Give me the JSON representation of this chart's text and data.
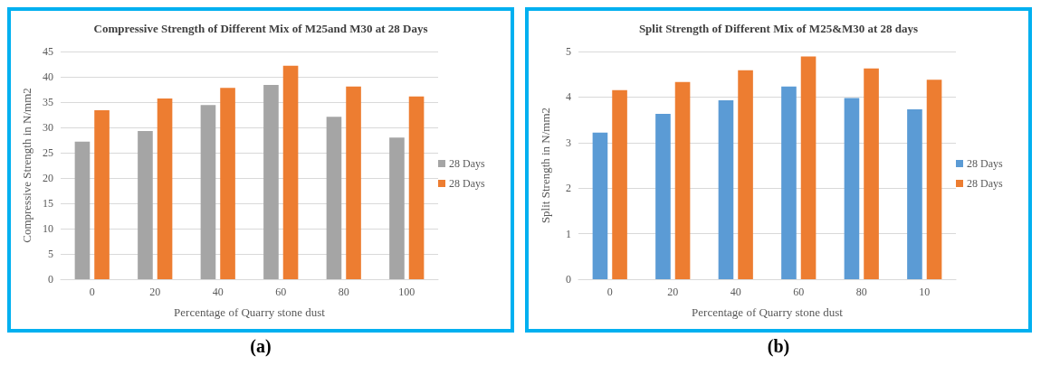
{
  "chart_data": [
    {
      "type": "bar",
      "title": "Compressive Strength of Different Mix of M25and M30 at 28 Days",
      "xlabel": "Percentage of Quarry stone dust",
      "ylabel": "Compressive Strength in N/mm2",
      "categories": [
        "0",
        "20",
        "40",
        "60",
        "80",
        "100"
      ],
      "series": [
        {
          "name": "28 Days",
          "color": "#a5a5a5",
          "values": [
            27.2,
            29.3,
            34.4,
            38.4,
            32.1,
            28.0
          ]
        },
        {
          "name": "28 Days",
          "color": "#ed7d31",
          "values": [
            33.4,
            35.7,
            37.8,
            42.2,
            38.1,
            36.1
          ]
        }
      ],
      "ylim": [
        0,
        45
      ],
      "yticks": [
        0,
        5,
        10,
        15,
        20,
        25,
        30,
        35,
        40,
        45
      ],
      "grid": "y",
      "legend": "right",
      "annotations": [
        "(a)"
      ]
    },
    {
      "type": "bar",
      "title": "Split Strength of Different Mix of M25&M30 at 28 days",
      "xlabel": "Percentage of Quarry stone dust",
      "ylabel": "Split Strength in N/mm2",
      "categories": [
        "0",
        "20",
        "40",
        "60",
        "80",
        "10"
      ],
      "series": [
        {
          "name": "28 Days",
          "color": "#5b9bd5",
          "values": [
            3.22,
            3.63,
            3.93,
            4.23,
            3.98,
            3.73
          ]
        },
        {
          "name": "28 Days",
          "color": "#ed7d31",
          "values": [
            4.15,
            4.33,
            4.59,
            4.89,
            4.63,
            4.38
          ]
        }
      ],
      "ylim": [
        0,
        5
      ],
      "yticks": [
        0,
        1,
        2,
        3,
        4,
        5
      ],
      "grid": "y",
      "legend": "right",
      "annotations": [
        "(b)"
      ]
    }
  ]
}
